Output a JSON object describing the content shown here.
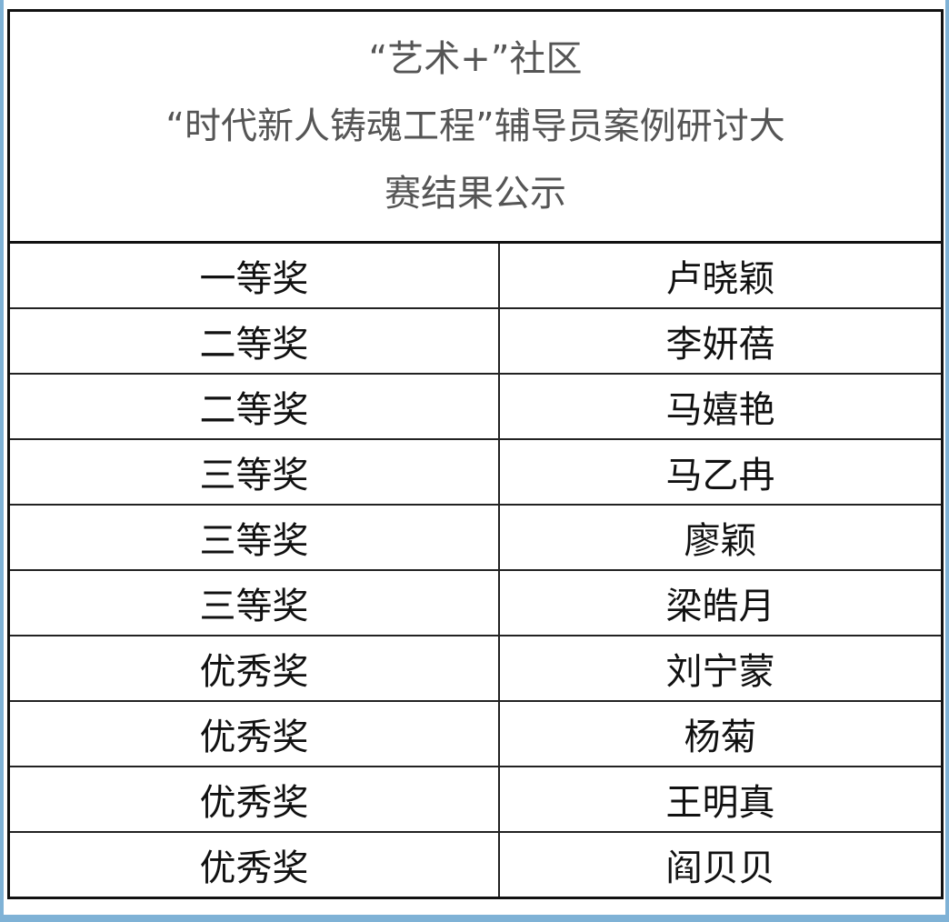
{
  "title_lines": [
    "“艺术+”社区",
    "“时代新人铸魂工程”辅导员案例研讨大",
    "赛结果公示"
  ],
  "rows": [
    {
      "award": "一等奖",
      "name": "卢晓颖"
    },
    {
      "award": "二等奖",
      "name": "李妍蓓"
    },
    {
      "award": "二等奖",
      "name": "马嬉艳"
    },
    {
      "award": "三等奖",
      "name": "马乙冉"
    },
    {
      "award": "三等奖",
      "name": "廖颖"
    },
    {
      "award": "三等奖",
      "name": "梁皓月"
    },
    {
      "award": "优秀奖",
      "name": "刘宁蒙"
    },
    {
      "award": "优秀奖",
      "name": "杨菊"
    },
    {
      "award": "优秀奖",
      "name": "王明真"
    },
    {
      "award": "优秀奖",
      "name": "阎贝贝"
    }
  ],
  "colors": {
    "frame": "#7fb2d6",
    "title_text": "#555555",
    "body_text": "#111111"
  }
}
